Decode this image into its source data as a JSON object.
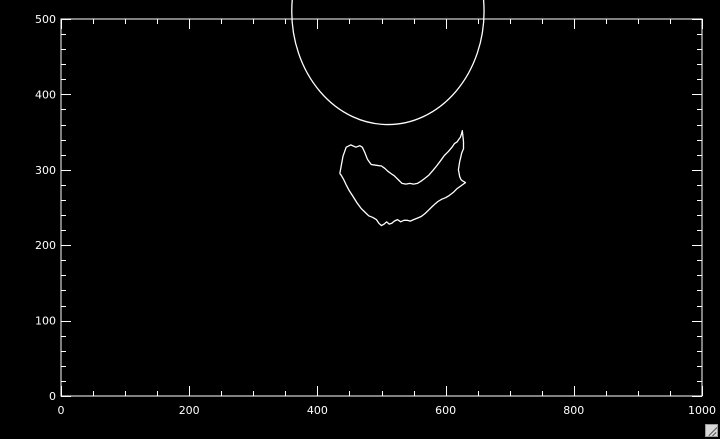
{
  "window": {
    "background": "#000000",
    "foreground": "#ffffff",
    "resize_grip_icon": "resize-grip-icon"
  },
  "chart_data": {
    "type": "line",
    "title": "",
    "xlabel": "",
    "ylabel": "",
    "xlim": [
      0,
      1000
    ],
    "ylim": [
      0,
      500
    ],
    "grid": false,
    "x_major_ticks": [
      0,
      200,
      400,
      600,
      800,
      1000
    ],
    "x_minor_step": 50,
    "y_major_ticks": [
      0,
      100,
      200,
      300,
      400,
      500
    ],
    "y_minor_step": 20,
    "x_tick_labels": [
      "0",
      "200",
      "400",
      "600",
      "800",
      "1000"
    ],
    "y_tick_labels": [
      "0",
      "100",
      "200",
      "300",
      "400",
      "500"
    ],
    "series": [
      {
        "kind": "circle",
        "color": "#ffffff",
        "center": [
          510,
          510
        ],
        "radius": 150
      },
      {
        "kind": "contour",
        "color": "#ffffff",
        "points": [
          [
            435,
            295
          ],
          [
            440,
            318
          ],
          [
            445,
            330
          ],
          [
            452,
            333
          ],
          [
            460,
            330
          ],
          [
            466,
            332
          ],
          [
            470,
            330
          ],
          [
            474,
            323
          ],
          [
            478,
            314
          ],
          [
            484,
            307
          ],
          [
            492,
            306
          ],
          [
            500,
            305
          ],
          [
            505,
            302
          ],
          [
            510,
            298
          ],
          [
            515,
            295
          ],
          [
            520,
            292
          ],
          [
            526,
            287
          ],
          [
            532,
            282
          ],
          [
            538,
            281
          ],
          [
            544,
            282
          ],
          [
            550,
            281
          ],
          [
            556,
            282
          ],
          [
            562,
            285
          ],
          [
            568,
            289
          ],
          [
            574,
            293
          ],
          [
            580,
            299
          ],
          [
            586,
            305
          ],
          [
            592,
            312
          ],
          [
            598,
            319
          ],
          [
            604,
            324
          ],
          [
            610,
            330
          ],
          [
            614,
            335
          ],
          [
            618,
            337
          ],
          [
            621,
            341
          ],
          [
            623,
            343
          ],
          [
            625,
            348
          ],
          [
            626,
            352
          ],
          [
            627,
            345
          ],
          [
            628,
            337
          ],
          [
            628,
            328
          ],
          [
            625,
            322
          ],
          [
            624,
            318
          ],
          [
            622,
            311
          ],
          [
            620,
            300
          ],
          [
            622,
            291
          ],
          [
            624,
            287
          ],
          [
            627,
            285
          ],
          [
            631,
            283
          ],
          [
            626,
            280
          ],
          [
            618,
            275
          ],
          [
            612,
            270
          ],
          [
            606,
            266
          ],
          [
            600,
            263
          ],
          [
            594,
            261
          ],
          [
            588,
            258
          ],
          [
            584,
            255
          ],
          [
            580,
            252
          ],
          [
            574,
            247
          ],
          [
            568,
            242
          ],
          [
            562,
            238
          ],
          [
            556,
            236
          ],
          [
            550,
            234
          ],
          [
            545,
            232
          ],
          [
            540,
            233
          ],
          [
            535,
            233
          ],
          [
            530,
            231
          ],
          [
            525,
            234
          ],
          [
            520,
            232
          ],
          [
            516,
            229
          ],
          [
            512,
            228
          ],
          [
            508,
            231
          ],
          [
            504,
            228
          ],
          [
            500,
            226
          ],
          [
            496,
            229
          ],
          [
            492,
            234
          ],
          [
            486,
            237
          ],
          [
            480,
            239
          ],
          [
            474,
            244
          ],
          [
            468,
            249
          ],
          [
            462,
            256
          ],
          [
            456,
            264
          ],
          [
            450,
            272
          ],
          [
            445,
            280
          ],
          [
            441,
            287
          ],
          [
            437,
            293
          ],
          [
            435,
            295
          ]
        ]
      }
    ]
  }
}
